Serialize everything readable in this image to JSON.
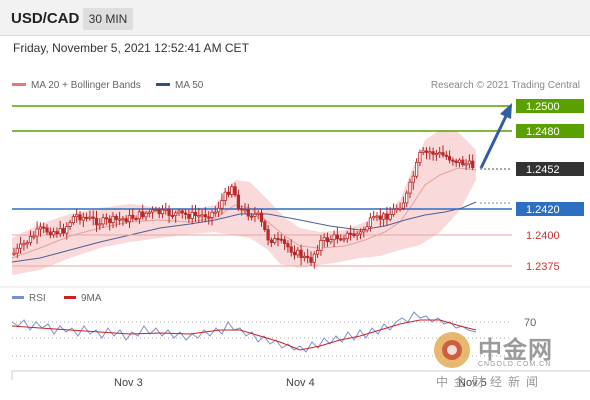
{
  "header": {
    "symbol": "USD/CAD",
    "timeframe": "30 MIN"
  },
  "date_line": "Friday, November 5, 2021 12:52:41 AM CET",
  "legend": {
    "items": [
      {
        "label": "MA 20 + Bollinger Bands",
        "color": "#e07a7a"
      },
      {
        "label": "MA 50",
        "color": "#334f7f"
      }
    ],
    "credit": "Research © 2021 Trading Central"
  },
  "price_levels": [
    {
      "value": "1.2500",
      "style": "green-box",
      "color": "#5aa000"
    },
    {
      "value": "1.2480",
      "style": "green-box",
      "color": "#5aa000"
    },
    {
      "value": "1.2452",
      "style": "dark-box",
      "color": "#333333"
    },
    {
      "value": "1.2420",
      "style": "blue-box",
      "color": "#2f6fc2"
    },
    {
      "value": "1.2400",
      "style": "red-text",
      "color": "#cc3333"
    },
    {
      "value": "1.2375",
      "style": "red-text",
      "color": "#cc3333"
    }
  ],
  "rsi": {
    "legend": [
      {
        "label": "RSI",
        "color": "#7a8fd0"
      },
      {
        "label": "9MA",
        "color": "#cc2222"
      }
    ],
    "level_label": "70"
  },
  "x_axis": {
    "labels": [
      "Nov 3",
      "Nov 4",
      "Nov 5"
    ]
  },
  "watermark": {
    "brand": "中金网",
    "url": "CNGOLD.COM.CN",
    "sub": "中金财经新闻"
  },
  "colors": {
    "candle": "#b82828",
    "band_fill": "#f8d2d2",
    "ma50": "#4d5f96",
    "arrow": "#2f5f9f"
  }
}
